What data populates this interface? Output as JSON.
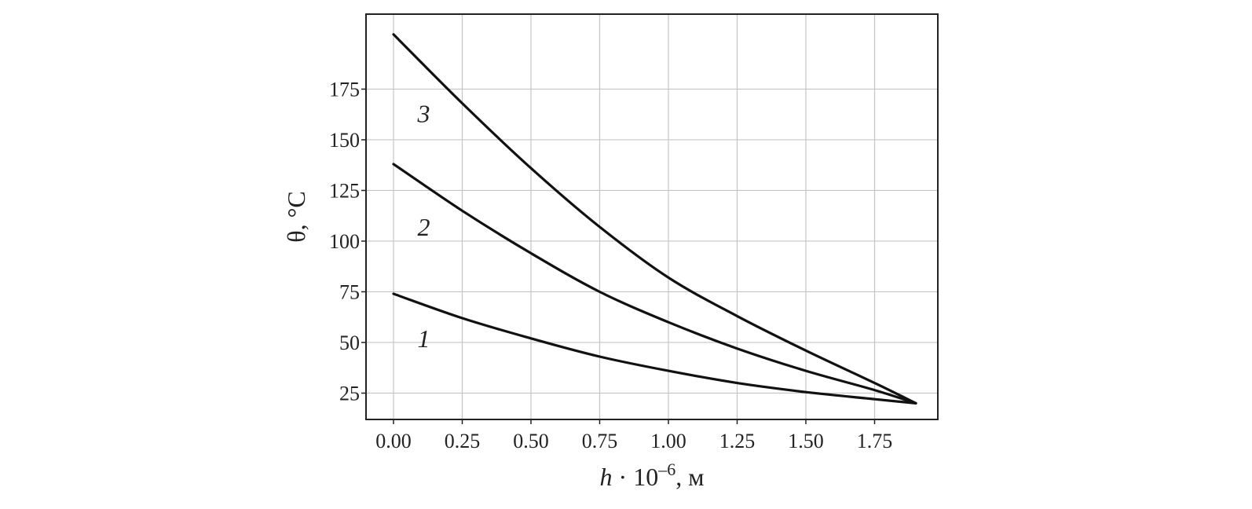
{
  "chart_data": {
    "type": "line",
    "title": "",
    "xlabel": {
      "var": "h",
      "mid": " · 10",
      "sup": "–6",
      "unit": ", м"
    },
    "ylabel": "θ, °C",
    "xlim": [
      -0.1,
      1.98
    ],
    "ylim": [
      12,
      212
    ],
    "xticks": [
      0.0,
      0.25,
      0.5,
      0.75,
      1.0,
      1.25,
      1.5,
      1.75
    ],
    "xtick_labels": [
      "0.00",
      "0.25",
      "0.50",
      "0.75",
      "1.00",
      "1.25",
      "1.50",
      "1.75"
    ],
    "yticks": [
      25,
      50,
      75,
      100,
      125,
      150,
      175
    ],
    "ytick_labels": [
      "25",
      "50",
      "75",
      "100",
      "125",
      "150",
      "175"
    ],
    "grid": true,
    "legend": "none",
    "series": [
      {
        "name": "1",
        "x": [
          0.0,
          0.25,
          0.5,
          0.75,
          1.0,
          1.25,
          1.5,
          1.75,
          1.9
        ],
        "y": [
          74,
          62,
          52,
          43,
          36,
          30,
          25.5,
          22,
          20
        ],
        "label_at": [
          0.11,
          52
        ]
      },
      {
        "name": "2",
        "x": [
          0.0,
          0.25,
          0.5,
          0.75,
          1.0,
          1.25,
          1.5,
          1.75,
          1.9
        ],
        "y": [
          138,
          115,
          94,
          75,
          60,
          47,
          36,
          26.5,
          20
        ],
        "label_at": [
          0.11,
          107
        ]
      },
      {
        "name": "3",
        "x": [
          0.0,
          0.25,
          0.5,
          0.75,
          1.0,
          1.25,
          1.5,
          1.75,
          1.9
        ],
        "y": [
          202,
          168,
          136,
          107,
          82,
          63,
          46,
          30,
          20
        ],
        "label_at": [
          0.11,
          163
        ]
      }
    ]
  }
}
